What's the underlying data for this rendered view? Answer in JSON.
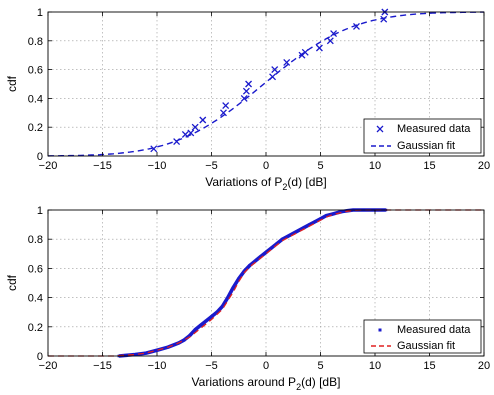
{
  "chart_data": [
    {
      "type": "scatter",
      "xlabel_main": "Variations of P",
      "xlabel_sub": "2",
      "xlabel_tail": "(d) [dB]",
      "ylabel": "cdf",
      "xlim": [
        -20,
        20
      ],
      "ylim": [
        0,
        1
      ],
      "xticks": [
        "−20",
        "−15",
        "−10",
        "−5",
        "0",
        "5",
        "10",
        "15",
        "20"
      ],
      "yticks": [
        "0",
        "0.2",
        "0.4",
        "0.6",
        "0.8",
        "1"
      ],
      "grid": true,
      "legend_position": "bottom-right",
      "colors": {
        "measured": "#1a1acc",
        "fit": "#1a1acc"
      },
      "series": [
        {
          "name": "Measured data",
          "marker": "x",
          "x": [
            -10.3,
            -8.2,
            -7.4,
            -6.9,
            -6.5,
            -5.8,
            -3.9,
            -3.7,
            -2.0,
            -1.8,
            -1.6,
            0.6,
            0.8,
            1.9,
            3.3,
            3.6,
            4.9,
            5.9,
            6.2,
            8.3,
            10.8,
            10.9
          ],
          "y": [
            0.05,
            0.1,
            0.15,
            0.16,
            0.2,
            0.25,
            0.3,
            0.35,
            0.4,
            0.45,
            0.5,
            0.55,
            0.6,
            0.65,
            0.7,
            0.72,
            0.75,
            0.8,
            0.85,
            0.9,
            0.95,
            1.0
          ]
        },
        {
          "name": "Gaussian fit",
          "line": "dashed",
          "mean": -0.2,
          "std": 6.4
        }
      ]
    },
    {
      "type": "line",
      "xlabel_main": "Variations around P",
      "xlabel_sub": "2",
      "xlabel_tail": "(d) [dB]",
      "ylabel": "cdf",
      "xlim": [
        -20,
        20
      ],
      "ylim": [
        0,
        1
      ],
      "xticks": [
        "−20",
        "−15",
        "−10",
        "−5",
        "0",
        "5",
        "10",
        "15",
        "20"
      ],
      "yticks": [
        "0",
        "0.2",
        "0.4",
        "0.6",
        "0.8",
        "1"
      ],
      "grid": true,
      "legend_position": "bottom-right",
      "colors": {
        "measured": "#1a1acc",
        "fit": "#e02020"
      },
      "series": [
        {
          "name": "Measured data",
          "marker": "point",
          "x": [
            -13.5,
            -12,
            -11,
            -10,
            -9,
            -8,
            -7.5,
            -7,
            -6.5,
            -6,
            -5.5,
            -5,
            -4.5,
            -4,
            -3.5,
            -3,
            -2.5,
            -2,
            -1.5,
            -1,
            -0.5,
            0,
            0.5,
            1,
            1.5,
            2,
            2.5,
            3,
            3.5,
            4,
            4.5,
            5,
            5.5,
            6,
            6.5,
            7,
            7.5,
            8,
            8.5,
            9,
            10,
            11
          ],
          "y": [
            0.0,
            0.01,
            0.02,
            0.04,
            0.06,
            0.09,
            0.11,
            0.14,
            0.18,
            0.21,
            0.24,
            0.27,
            0.3,
            0.34,
            0.4,
            0.47,
            0.53,
            0.58,
            0.62,
            0.65,
            0.68,
            0.71,
            0.74,
            0.77,
            0.8,
            0.82,
            0.84,
            0.86,
            0.88,
            0.9,
            0.92,
            0.94,
            0.96,
            0.97,
            0.98,
            0.99,
            0.995,
            1.0,
            1.0,
            1.0,
            1.0,
            1.0
          ]
        },
        {
          "name": "Gaussian fit",
          "line": "dashed",
          "curve_x": [
            -20,
            -14,
            -13,
            -12,
            -11,
            -10,
            -9,
            -8,
            -7,
            -6,
            -5,
            -4,
            -3,
            -2.5,
            -2,
            -1.5,
            -1,
            -0.5,
            0,
            0.5,
            1,
            1.5,
            2,
            2.5,
            3,
            3.5,
            4,
            4.5,
            5,
            5.5,
            6,
            6.5,
            7,
            7.5,
            8,
            8.5,
            9,
            10,
            20
          ],
          "curve_y": [
            0.0,
            0.0,
            0.005,
            0.01,
            0.02,
            0.04,
            0.06,
            0.09,
            0.13,
            0.19,
            0.25,
            0.32,
            0.44,
            0.51,
            0.57,
            0.61,
            0.64,
            0.67,
            0.7,
            0.73,
            0.76,
            0.79,
            0.81,
            0.83,
            0.85,
            0.87,
            0.89,
            0.91,
            0.93,
            0.95,
            0.965,
            0.975,
            0.985,
            0.992,
            0.997,
            0.999,
            1.0,
            1.0,
            1.0
          ]
        }
      ]
    }
  ]
}
